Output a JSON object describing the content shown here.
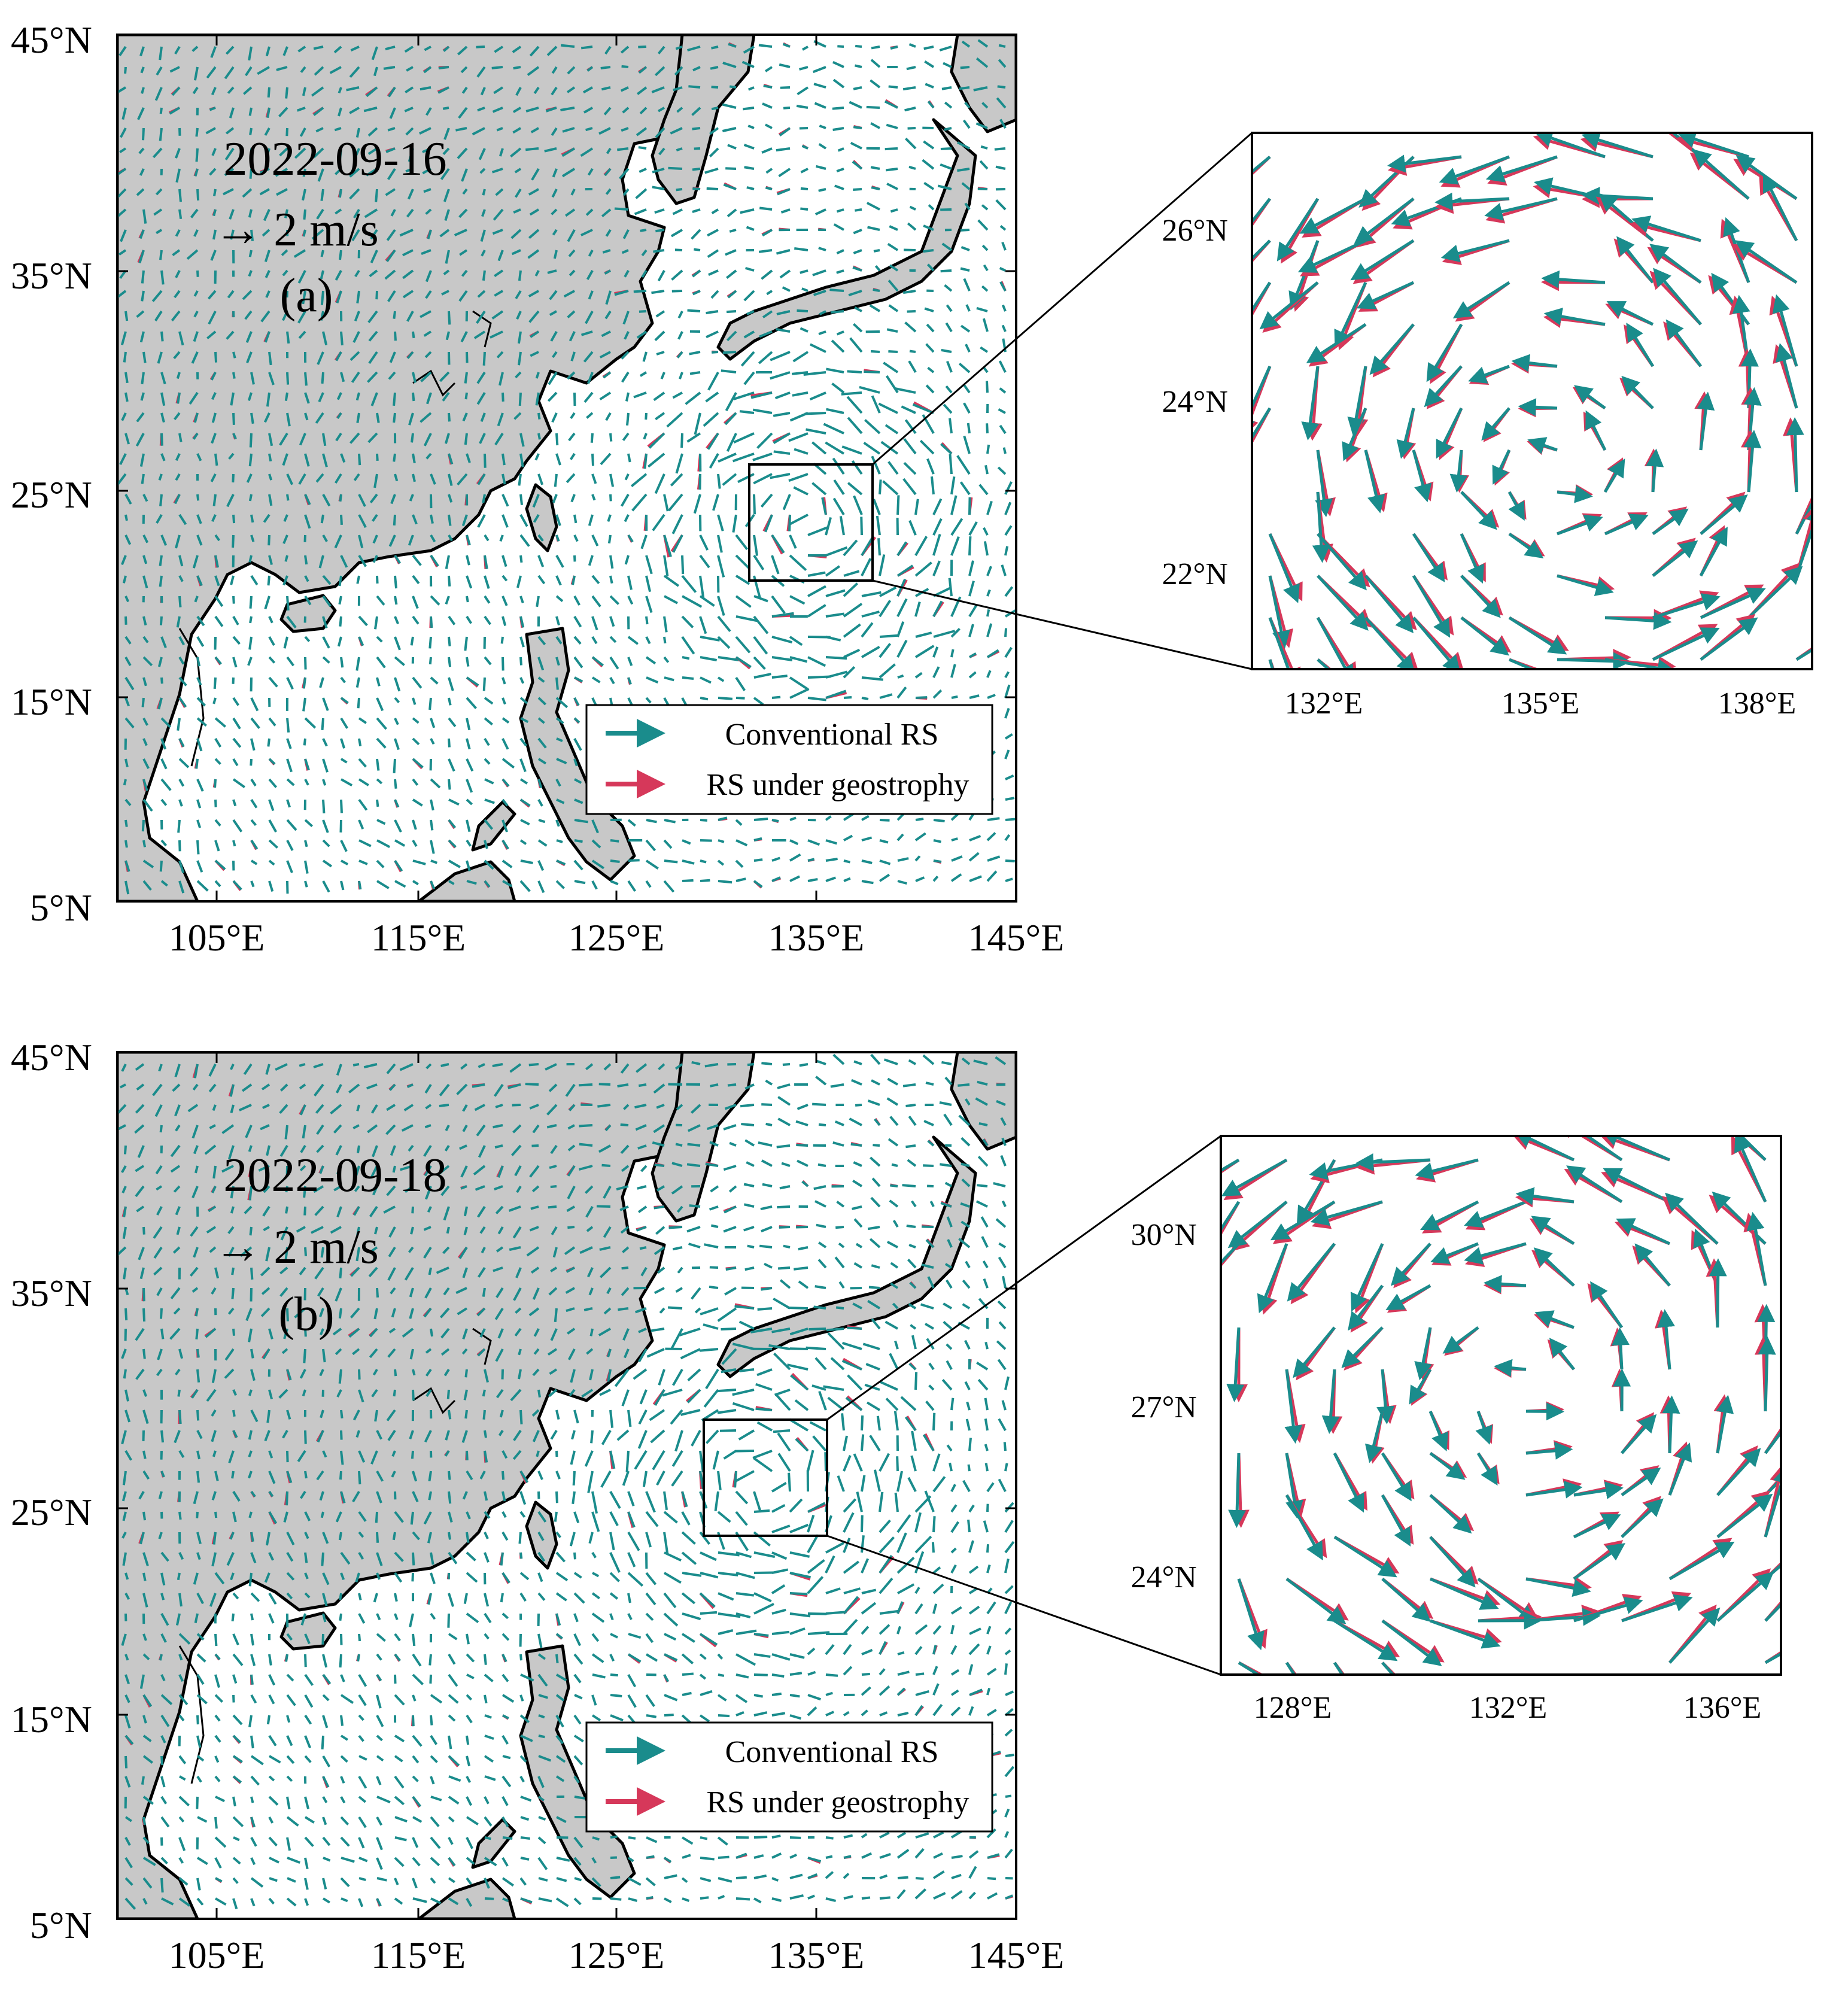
{
  "panels": [
    {
      "id": "a",
      "date": "2022-09-16",
      "scale_label": "→ 2 m/s",
      "panel_label": "(a)",
      "lat_labels": [
        "45°N",
        "35°N",
        "25°N",
        "15°N",
        "5°N"
      ],
      "lon_labels": [
        "105°E",
        "115°E",
        "125°E",
        "135°E",
        "145°E"
      ],
      "inset": {
        "lat_labels": [
          "26°N",
          "24°N",
          "22°N"
        ],
        "lon_labels": [
          "132°E",
          "135°E",
          "138°E"
        ]
      }
    },
    {
      "id": "b",
      "date": "2022-09-18",
      "scale_label": "→ 2 m/s",
      "panel_label": "(b)",
      "lat_labels": [
        "45°N",
        "35°N",
        "25°N",
        "15°N",
        "5°N"
      ],
      "lon_labels": [
        "105°E",
        "115°E",
        "125°E",
        "135°E",
        "145°E"
      ],
      "inset": {
        "lat_labels": [
          "30°N",
          "27°N",
          "24°N"
        ],
        "lon_labels": [
          "128°E",
          "132°E",
          "136°E"
        ]
      }
    }
  ],
  "legend": {
    "conventional": "Conventional RS",
    "geostrophy": "RS under geostrophy"
  },
  "colors": {
    "conventional": "#1a8c8c",
    "geostrophy": "#d6385a",
    "land": "#c8c8c8"
  }
}
